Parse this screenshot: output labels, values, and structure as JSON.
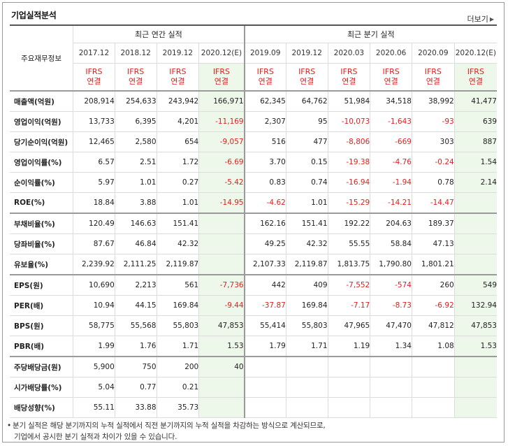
{
  "title": "기업실적분석",
  "more_label": "더보기",
  "header": {
    "label": "주요재무정보",
    "annual_group": "최근 연간 실적",
    "quarter_group": "최근 분기 실적",
    "annual_years": [
      "2017.12",
      "2018.12",
      "2019.12",
      "2020.12(E)"
    ],
    "quarter_years": [
      "2019.09",
      "2019.12",
      "2020.03",
      "2020.06",
      "2020.09",
      "2020.12(E)"
    ],
    "std_line1": "IFRS",
    "std_line2": "연결"
  },
  "rows": [
    {
      "label": "매출액(억원)",
      "values": [
        "208,914",
        "254,633",
        "243,942",
        "166,971",
        "62,345",
        "64,762",
        "51,984",
        "34,518",
        "38,992",
        "41,477"
      ]
    },
    {
      "label": "영업이익(억원)",
      "values": [
        "13,733",
        "6,395",
        "4,201",
        "-11,169",
        "2,307",
        "95",
        "-10,073",
        "-1,643",
        "-93",
        "639"
      ]
    },
    {
      "label": "당기순이익(억원)",
      "values": [
        "12,465",
        "2,580",
        "654",
        "-9,057",
        "516",
        "477",
        "-8,806",
        "-669",
        "303",
        "887"
      ]
    },
    {
      "label": "영업이익률(%)",
      "values": [
        "6.57",
        "2.51",
        "1.72",
        "-6.69",
        "3.70",
        "0.15",
        "-19.38",
        "-4.76",
        "-0.24",
        "1.54"
      ]
    },
    {
      "label": "순이익률(%)",
      "values": [
        "5.97",
        "1.01",
        "0.27",
        "-5.42",
        "0.83",
        "0.74",
        "-16.94",
        "-1.94",
        "0.78",
        "2.14"
      ]
    },
    {
      "label": "ROE(%)",
      "values": [
        "18.84",
        "3.88",
        "1.01",
        "-14.95",
        "-4.62",
        "1.01",
        "-15.29",
        "-14.21",
        "-14.47",
        ""
      ]
    },
    {
      "label": "부채비율(%)",
      "values": [
        "120.49",
        "146.63",
        "151.41",
        "",
        "162.16",
        "151.41",
        "192.22",
        "204.63",
        "189.37",
        ""
      ]
    },
    {
      "label": "당좌비율(%)",
      "values": [
        "87.67",
        "46.84",
        "42.32",
        "",
        "49.25",
        "42.32",
        "55.55",
        "58.84",
        "47.13",
        ""
      ]
    },
    {
      "label": "유보율(%)",
      "values": [
        "2,239.92",
        "2,111.25",
        "2,119.87",
        "",
        "2,107.33",
        "2,119.87",
        "1,813.75",
        "1,790.80",
        "1,801.21",
        ""
      ]
    },
    {
      "label": "EPS(원)",
      "values": [
        "10,690",
        "2,213",
        "561",
        "-7,736",
        "442",
        "409",
        "-7,552",
        "-574",
        "260",
        "549"
      ]
    },
    {
      "label": "PER(배)",
      "values": [
        "10.94",
        "44.15",
        "169.84",
        "-9.44",
        "-37.87",
        "169.84",
        "-7.17",
        "-8.73",
        "-6.92",
        "132.94"
      ]
    },
    {
      "label": "BPS(원)",
      "values": [
        "58,775",
        "55,568",
        "55,803",
        "47,853",
        "55,414",
        "55,803",
        "47,965",
        "47,470",
        "47,812",
        "47,853"
      ]
    },
    {
      "label": "PBR(배)",
      "values": [
        "1.99",
        "1.76",
        "1.71",
        "1.53",
        "1.79",
        "1.71",
        "1.19",
        "1.34",
        "1.08",
        "1.53"
      ]
    },
    {
      "label": "주당배당금(원)",
      "values": [
        "5,900",
        "750",
        "200",
        "40",
        "",
        "",
        "",
        "",
        "",
        ""
      ]
    },
    {
      "label": "시가배당률(%)",
      "values": [
        "5.04",
        "0.77",
        "0.21",
        "",
        "",
        "",
        "",
        "",
        "",
        ""
      ]
    },
    {
      "label": "배당성향(%)",
      "values": [
        "55.11",
        "33.88",
        "35.73",
        "",
        "",
        "",
        "",
        "",
        "",
        ""
      ]
    }
  ],
  "note_line1": "분기 실적은 해당 분기까지의 누적 실적에서 직전 분기까지의 누적 실적을 차감하는 방식으로 계산되므로,",
  "note_line2": "기업에서 공시한 분기 실적과 차이가 있을 수 있습니다.",
  "colors": {
    "negative": "#e02020",
    "estimate_bg": "#eef8ea"
  }
}
